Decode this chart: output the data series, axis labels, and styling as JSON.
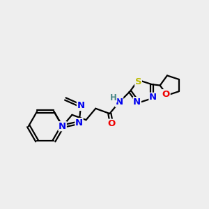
{
  "background_color": "#eeeeee",
  "atom_colors": {
    "N": "#0000ee",
    "O": "#ee0000",
    "S": "#bbbb00",
    "C": "#000000",
    "H": "#4a8888"
  },
  "bond_color": "#000000",
  "bond_width": 1.6,
  "font_size_atoms": 9.5,
  "font_size_H": 8.5
}
